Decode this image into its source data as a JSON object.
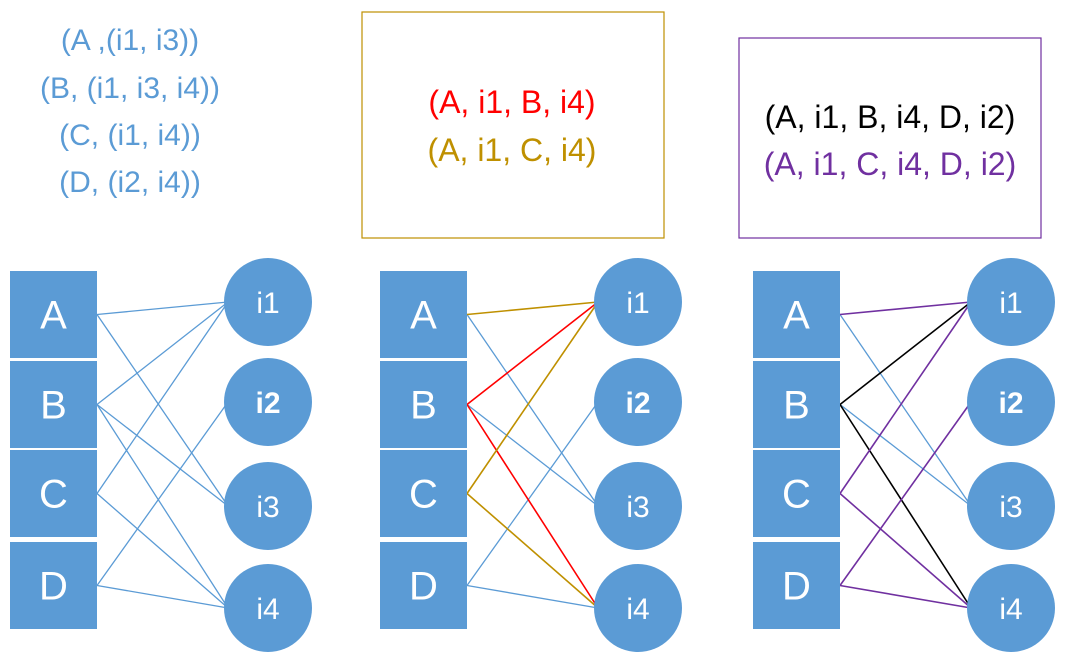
{
  "colors": {
    "node_fill": "#5b9bd5",
    "blue_edge": "#5b9bd5",
    "red": "#ff0000",
    "gold": "#bf9000",
    "purple": "#7030a0",
    "black": "#000000",
    "box1_border": "#bf9000",
    "box2_border": "#7030a0"
  },
  "tuples": [
    "(A ,(i1, i3))",
    "(B, (i1, i3, i4))",
    "(C,  (i1, i4))",
    "(D, (i2, i4))"
  ],
  "box1": {
    "lines": [
      "(A, i1, B, i4)",
      "(A, i1, C, i4)"
    ],
    "line_colors": [
      "red",
      "gold"
    ]
  },
  "box2": {
    "lines": [
      "(A, i1, B, i4, D, i2)",
      "(A, i1, C, i4, D, i2)"
    ],
    "line_colors": [
      "black",
      "purple"
    ]
  },
  "users": [
    "A",
    "B",
    "C",
    "D"
  ],
  "items": [
    {
      "label": "i1",
      "bold": false
    },
    {
      "label": "i2",
      "bold": true
    },
    {
      "label": "i3",
      "bold": false
    },
    {
      "label": "i4",
      "bold": false
    }
  ],
  "edges": [
    [
      "A",
      "i1"
    ],
    [
      "A",
      "i3"
    ],
    [
      "B",
      "i1"
    ],
    [
      "B",
      "i3"
    ],
    [
      "B",
      "i4"
    ],
    [
      "C",
      "i1"
    ],
    [
      "C",
      "i4"
    ],
    [
      "D",
      "i2"
    ],
    [
      "D",
      "i4"
    ]
  ],
  "panels": [
    {
      "name": "all-edges",
      "highlights": []
    },
    {
      "name": "length-4-paths",
      "highlights": [
        {
          "color": "red",
          "path": [
            "A",
            "i1",
            "B",
            "i4"
          ]
        },
        {
          "color": "gold",
          "path": [
            "A",
            "i1",
            "C",
            "i4"
          ]
        }
      ]
    },
    {
      "name": "length-6-paths",
      "highlights": [
        {
          "color": "black",
          "path": [
            "A",
            "i1",
            "B",
            "i4",
            "D",
            "i2"
          ]
        },
        {
          "color": "purple",
          "path": [
            "A",
            "i1",
            "C",
            "i4",
            "D",
            "i2"
          ]
        }
      ]
    }
  ]
}
